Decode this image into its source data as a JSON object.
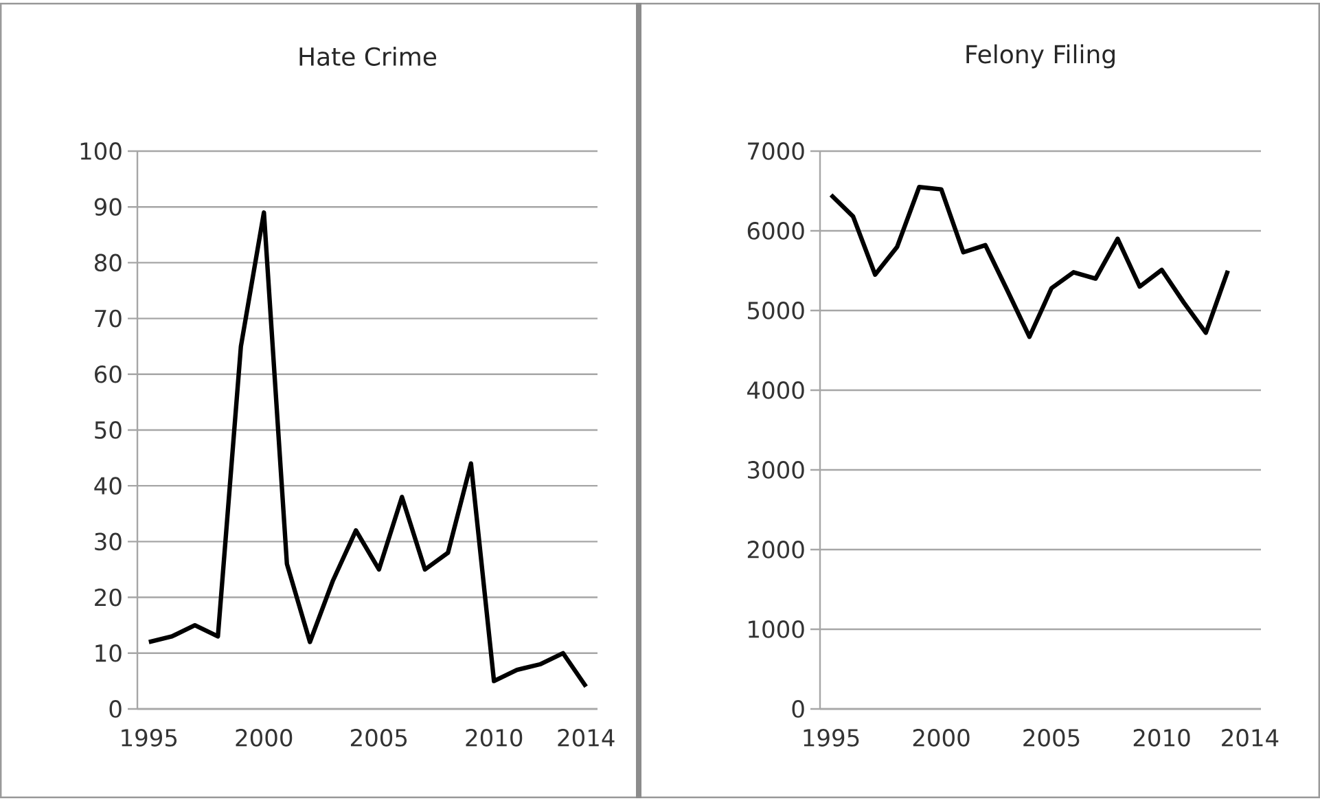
{
  "chart_data": [
    {
      "type": "line",
      "title": "Hate Crime",
      "categories": [
        "1995",
        null,
        null,
        null,
        null,
        "2000",
        null,
        null,
        null,
        null,
        "2005",
        null,
        null,
        null,
        null,
        "2010",
        null,
        null,
        null,
        "2014"
      ],
      "values": [
        12,
        13,
        15,
        13,
        65,
        89,
        26,
        12,
        23,
        32,
        25,
        38,
        25,
        28,
        44,
        5,
        7,
        8,
        10,
        4
      ],
      "color": "#000000",
      "ylim": [
        0,
        100
      ],
      "yticks": [
        0,
        10,
        20,
        30,
        40,
        50,
        60,
        70,
        80,
        90,
        100
      ],
      "grid": "y",
      "legend": false,
      "marker": "none",
      "line_style": "solid"
    },
    {
      "type": "line",
      "title": "Felony Filing",
      "categories": [
        "1995",
        null,
        null,
        null,
        null,
        "2000",
        null,
        null,
        null,
        null,
        "2005",
        null,
        null,
        null,
        null,
        "2010",
        null,
        null,
        null,
        "2014"
      ],
      "values": [
        6450,
        6180,
        5450,
        5800,
        6550,
        6520,
        5730,
        5820,
        5250,
        4670,
        5280,
        5480,
        5400,
        5900,
        5300,
        5510,
        5100,
        4720,
        5500,
        null
      ],
      "color": "#000000",
      "ylim": [
        0,
        7000
      ],
      "yticks": [
        0,
        1000,
        2000,
        3000,
        4000,
        5000,
        6000,
        7000
      ],
      "grid": "y",
      "legend": false,
      "marker": "none",
      "line_style": "solid"
    }
  ]
}
